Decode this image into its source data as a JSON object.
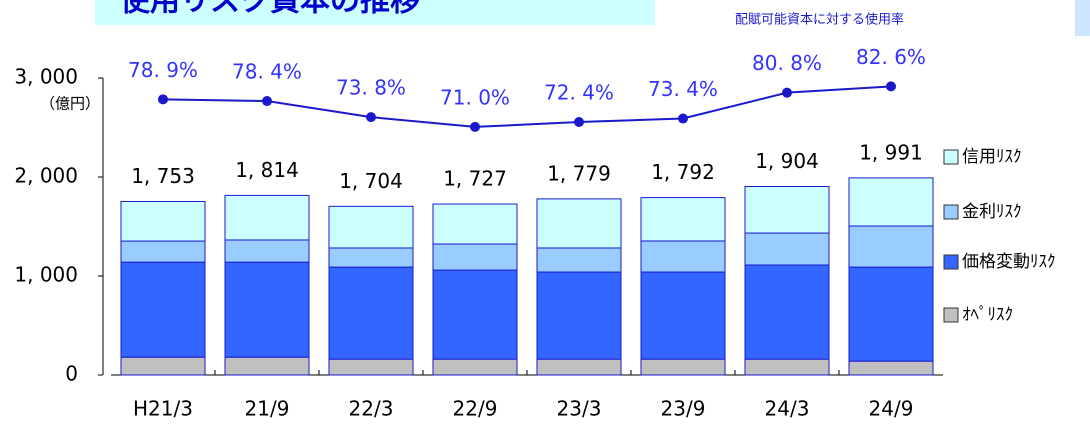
{
  "chart_data": {
    "type": "bar",
    "title": "使用リスク資本の推移",
    "y_unit": "（億円）",
    "categories": [
      "H21/3",
      "21/9",
      "22/3",
      "22/9",
      "23/3",
      "23/9",
      "24/3",
      "24/9"
    ],
    "series": [
      {
        "name": "ｵﾍﾟﾘｽｸ",
        "color": "#c0c0c0",
        "values": [
          180,
          180,
          160,
          160,
          160,
          160,
          160,
          140
        ]
      },
      {
        "name": "価格変動ﾘｽｸ",
        "color": "#3366ff",
        "values": [
          960,
          960,
          930,
          900,
          880,
          880,
          951,
          950
        ]
      },
      {
        "name": "金利ﾘｽｸ",
        "color": "#99ccff",
        "values": [
          213,
          224,
          193,
          263,
          243,
          314,
          323,
          415
        ]
      },
      {
        "name": "信用ﾘｽｸ",
        "color": "#ccffff",
        "values": [
          400,
          450,
          421,
          404,
          496,
          438,
          470,
          486
        ]
      },
      {
        "name": "配賦可能資本に対する使用率",
        "type": "line",
        "axis": "y2",
        "color": "#1a1acc",
        "values": [
          78.9,
          78.4,
          73.8,
          71.0,
          72.4,
          73.4,
          80.8,
          82.6
        ],
        "value_labels": [
          "78. 9%",
          "78. 4%",
          "73. 8%",
          "71. 0%",
          "72. 4%",
          "73. 4%",
          "80. 8%",
          "82. 6%"
        ]
      }
    ],
    "totals": [
      1753,
      1814,
      1704,
      1727,
      1779,
      1792,
      1904,
      1991
    ],
    "total_labels": [
      "1, 753",
      "1, 814",
      "1, 704",
      "1, 727",
      "1, 779",
      "1, 792",
      "1, 904",
      "1, 991"
    ],
    "ylim": [
      0,
      3000
    ],
    "yticks": [
      {
        "value": 3000,
        "label": "3, 000"
      },
      {
        "value": 2000,
        "label": "2, 000"
      },
      {
        "value": 1000,
        "label": "1, 000"
      },
      0
    ],
    "y2lim": [
      0,
      85
    ],
    "legend": "right"
  }
}
